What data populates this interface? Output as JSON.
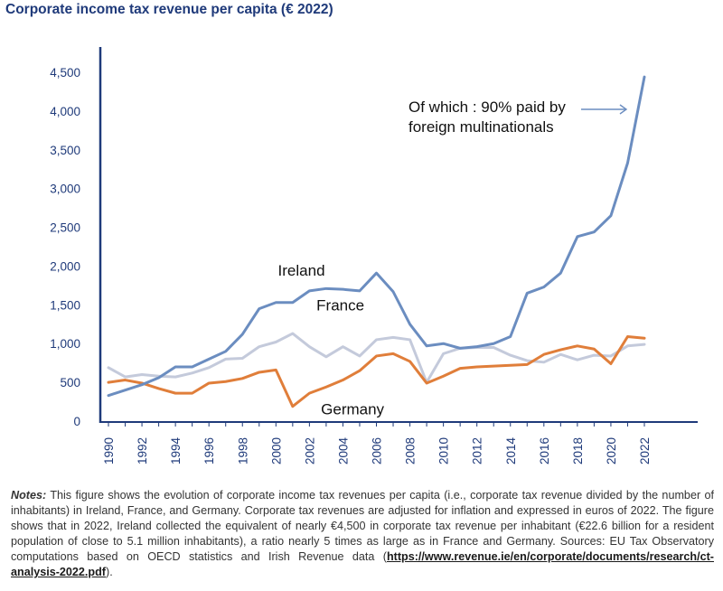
{
  "title": "Corporate income tax revenue per capita (€ 2022)",
  "chart_data": {
    "type": "line",
    "title": "Corporate income tax revenue per capita (€ 2022)",
    "xlabel": "",
    "ylabel": "",
    "x": [
      1990,
      1991,
      1992,
      1993,
      1994,
      1995,
      1996,
      1997,
      1998,
      1999,
      2000,
      2001,
      2002,
      2003,
      2004,
      2005,
      2006,
      2007,
      2008,
      2009,
      2010,
      2011,
      2012,
      2013,
      2014,
      2015,
      2016,
      2017,
      2018,
      2019,
      2020,
      2021,
      2022
    ],
    "xticks": [
      "1990",
      "1992",
      "1994",
      "1996",
      "1998",
      "2000",
      "2002",
      "2004",
      "2006",
      "2008",
      "2010",
      "2012",
      "2014",
      "2016",
      "2018",
      "2020",
      "2022"
    ],
    "ylim": [
      0,
      4500
    ],
    "yticks": [
      "0",
      "500",
      "1,000",
      "1,500",
      "2,000",
      "2,500",
      "3,000",
      "3,500",
      "4,000",
      "4,500"
    ],
    "series": [
      {
        "name": "Ireland",
        "color": "#6b8dc0",
        "values": [
          330,
          400,
          470,
          560,
          700,
          700,
          800,
          900,
          1120,
          1450,
          1530,
          1530,
          1680,
          1710,
          1700,
          1680,
          1910,
          1670,
          1250,
          970,
          1000,
          940,
          960,
          1000,
          1090,
          1650,
          1730,
          1910,
          2380,
          2440,
          2650,
          3330,
          4440
        ]
      },
      {
        "name": "France",
        "color": "#c4cadb",
        "values": [
          690,
          570,
          600,
          580,
          570,
          620,
          690,
          800,
          810,
          960,
          1020,
          1130,
          960,
          830,
          960,
          840,
          1050,
          1080,
          1050,
          500,
          870,
          940,
          950,
          950,
          850,
          780,
          760,
          860,
          790,
          850,
          840,
          970,
          990
        ]
      },
      {
        "name": "Germany",
        "color": "#e07e3a",
        "values": [
          500,
          530,
          490,
          420,
          360,
          360,
          490,
          510,
          550,
          630,
          660,
          190,
          360,
          440,
          530,
          650,
          840,
          870,
          770,
          490,
          580,
          680,
          700,
          710,
          720,
          730,
          860,
          920,
          970,
          930,
          740,
          1090,
          1070
        ]
      }
    ],
    "annotation": "Of which : 90% paid by foreign multinationals"
  },
  "notes": {
    "lead": "Notes:",
    "text": " This figure shows the evolution of corporate income tax revenues per capita (i.e., corporate tax revenue divided by the number of inhabitants) in Ireland, France, and Germany. Corporate tax revenues are adjusted for inflation and expressed in euros of 2022. The figure shows that in 2022, Ireland collected the equivalent of nearly €4,500 in corporate tax revenue per inhabitant (€22.6 billion for a resident population of close to 5.1 million inhabitants), a ratio nearly 5 times as large as in France and Germany. Sources: EU Tax Observatory computations based on OECD statistics and Irish Revenue data (",
    "link": "https://www.revenue.ie/en/corporate/documents/research/ct-analysis-2022.pdf",
    "tail": ")."
  }
}
